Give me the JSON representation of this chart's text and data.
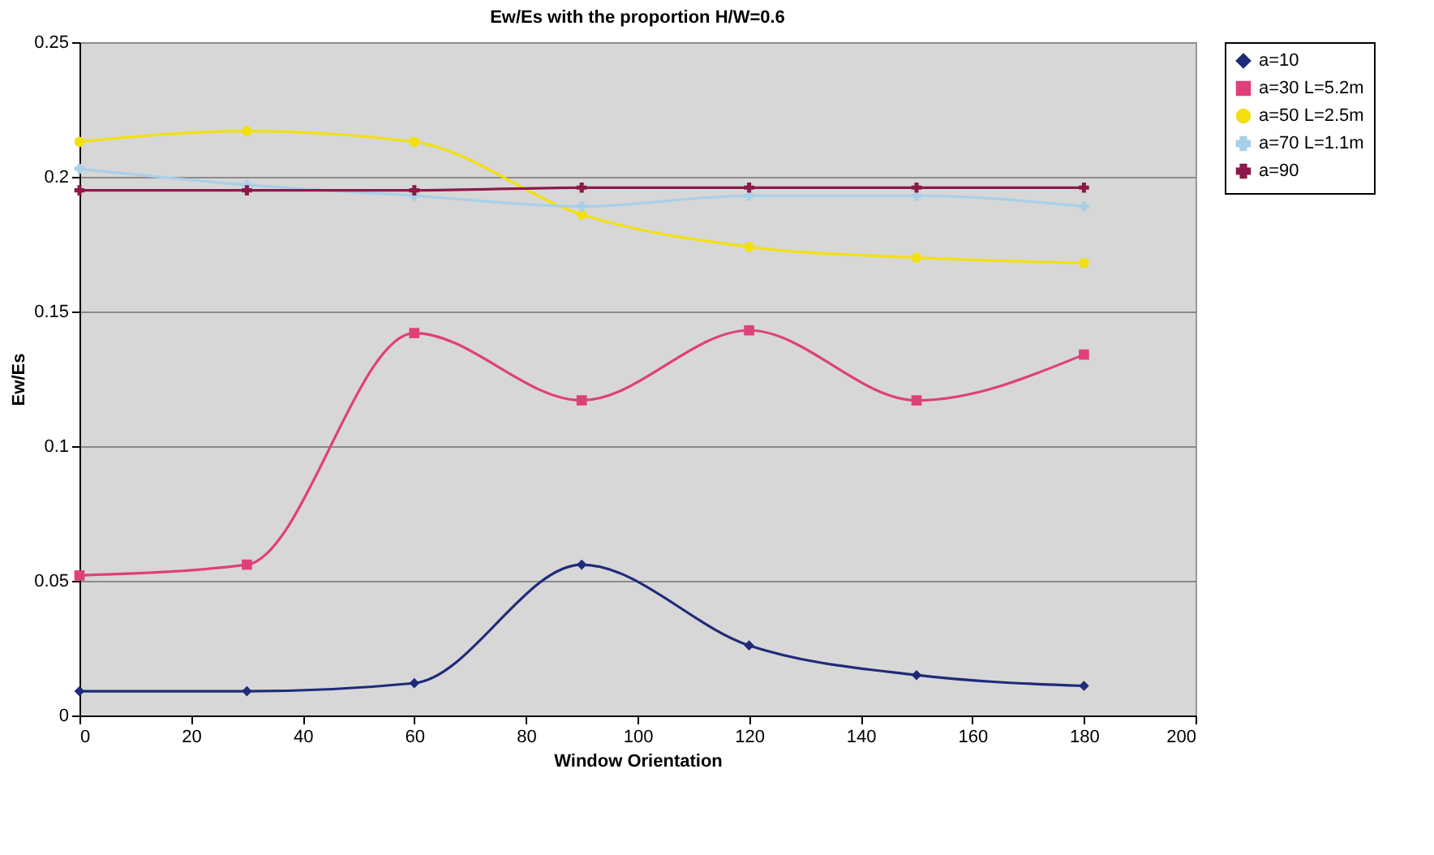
{
  "chart_data": {
    "type": "line",
    "title": "Ew/Es with the proportion H/W=0.6",
    "xlabel": "Window Orientation",
    "ylabel": "Ew/Es",
    "x": [
      0,
      30,
      60,
      90,
      120,
      150,
      180
    ],
    "xlim": [
      0,
      200
    ],
    "xticks": [
      0,
      20,
      40,
      60,
      80,
      100,
      120,
      140,
      160,
      180,
      200
    ],
    "ylim": [
      0,
      0.25
    ],
    "yticks": [
      0,
      0.05,
      0.1,
      0.15,
      0.2,
      0.25
    ],
    "grid": "y",
    "legend": "right",
    "series": [
      {
        "name": "a=10",
        "color": "#1f2a7a",
        "marker": "diamond",
        "values": [
          0.009,
          0.009,
          0.012,
          0.056,
          0.026,
          0.015,
          0.011
        ]
      },
      {
        "name": "a=30 L=5.2m",
        "color": "#e0407a",
        "marker": "square",
        "values": [
          0.052,
          0.056,
          0.142,
          0.117,
          0.143,
          0.117,
          0.134
        ]
      },
      {
        "name": "a=50 L=2.5m",
        "color": "#f2e010",
        "marker": "circle",
        "values": [
          0.213,
          0.217,
          0.213,
          0.186,
          0.174,
          0.17,
          0.168
        ]
      },
      {
        "name": "a=70 L=1.1m",
        "color": "#a8d0e8",
        "marker": "cross",
        "values": [
          0.203,
          0.197,
          0.193,
          0.189,
          0.193,
          0.193,
          0.189
        ]
      },
      {
        "name": "a=90",
        "color": "#8b1a4a",
        "marker": "cross",
        "values": [
          0.195,
          0.195,
          0.195,
          0.196,
          0.196,
          0.196,
          0.196
        ]
      }
    ]
  }
}
